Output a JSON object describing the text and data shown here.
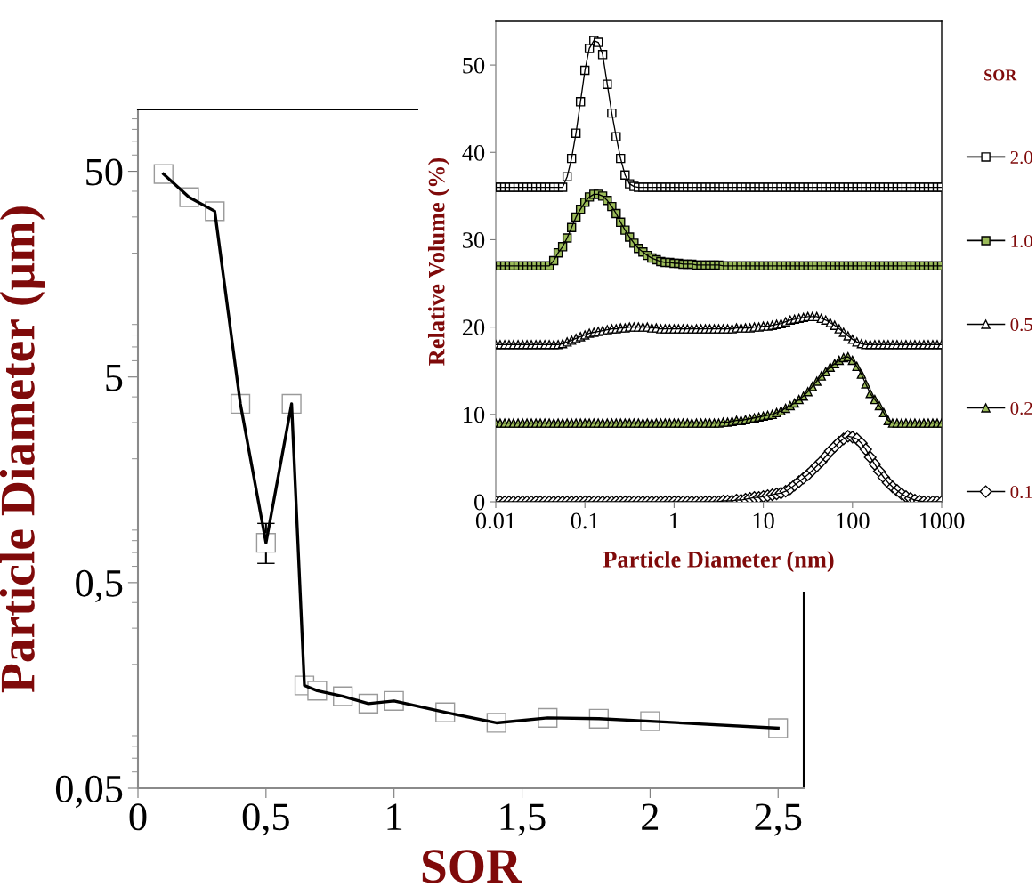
{
  "chart_data": [
    {
      "type": "line",
      "xlabel": "SOR",
      "ylabel": "Particle Diameter (µm)",
      "log": true,
      "marker": "square",
      "xlim": [
        0,
        2.6
      ],
      "xticks": [
        0,
        {
          "value": 0.5,
          "label": "0,5"
        },
        1,
        {
          "value": 1.5,
          "label": "1,5"
        },
        2,
        {
          "value": 2.5,
          "label": "2,5"
        }
      ],
      "ylim": [
        0.05,
        100
      ],
      "yticks": [
        {
          "value": 0.05,
          "label": "0,05"
        },
        {
          "value": 0.5,
          "label": "0,5"
        },
        5,
        50
      ],
      "x": [
        0.1,
        0.2,
        0.3,
        0.4,
        0.5,
        0.6,
        0.65,
        0.7,
        0.8,
        0.9,
        1.0,
        1.2,
        1.4,
        1.6,
        1.8,
        2.0,
        2.5
      ],
      "series": [
        {
          "color": "#ffffff",
          "values": [
            48.5,
            37.4,
            32,
            3.7,
            0.78,
            3.7,
            0.158,
            0.149,
            0.14,
            0.129,
            0.133,
            0.117,
            0.104,
            0.11,
            0.109,
            0.106,
            0.098
          ],
          "errors": [
            null,
            null,
            null,
            null,
            [
              0.62,
              0.97
            ],
            null,
            null,
            null,
            null,
            null,
            null,
            null,
            null,
            null,
            null,
            null,
            null
          ]
        }
      ]
    },
    {
      "type": "line",
      "xlabel": "Particle Diameter (nm)",
      "ylabel": "Relative Volume (%)",
      "log": "x",
      "legend": "right",
      "legend_title": "SOR",
      "xlim": [
        0.01,
        1000
      ],
      "xticks": [
        0.01,
        0.1,
        1,
        10,
        100,
        1000
      ],
      "ylim": [
        0,
        55
      ],
      "yticks": [
        0,
        10,
        20,
        30,
        40,
        50
      ],
      "x": [
        0.01,
        0.0112,
        0.0126,
        0.0141,
        0.0158,
        0.0178,
        0.02,
        0.0224,
        0.0251,
        0.0282,
        0.0316,
        0.0355,
        0.0398,
        0.0447,
        0.0501,
        0.0562,
        0.0631,
        0.0708,
        0.0794,
        0.0891,
        0.1,
        0.112,
        0.126,
        0.141,
        0.158,
        0.178,
        0.2,
        0.224,
        0.251,
        0.282,
        0.316,
        0.355,
        0.398,
        0.447,
        0.501,
        0.562,
        0.631,
        0.708,
        0.794,
        0.891,
        1,
        1.12,
        1.26,
        1.41,
        1.58,
        1.78,
        2,
        2.24,
        2.51,
        2.82,
        3.16,
        3.55,
        3.98,
        4.47,
        5.01,
        5.62,
        6.31,
        7.08,
        7.94,
        8.91,
        10,
        11.2,
        12.6,
        14.1,
        15.8,
        17.8,
        20,
        22.4,
        25.1,
        28.2,
        31.6,
        35.5,
        39.8,
        44.7,
        50.1,
        56.2,
        63.1,
        70.8,
        79.4,
        89.1,
        100,
        112,
        126,
        141,
        158,
        178,
        200,
        224,
        251,
        282,
        316,
        355,
        398,
        447,
        501,
        562,
        631,
        708,
        794,
        891,
        1000
      ],
      "series": [
        {
          "name": "2.0",
          "color": "#ffffff",
          "marker": "square",
          "values": [
            36,
            36,
            36,
            36,
            36,
            36,
            36,
            36,
            36,
            36,
            36,
            36,
            36,
            36,
            36,
            36,
            37.2,
            39.3,
            42.2,
            45.8,
            49.4,
            51.9,
            52.8,
            52.6,
            51.2,
            47.8,
            44.5,
            41.8,
            39.3,
            37.4,
            36.4,
            36.1,
            36,
            36,
            36,
            36,
            36,
            36,
            36,
            36,
            36,
            36,
            36,
            36,
            36,
            36,
            36,
            36,
            36,
            36,
            36,
            36,
            36,
            36,
            36,
            36,
            36,
            36,
            36,
            36,
            36,
            36,
            36,
            36,
            36,
            36,
            36,
            36,
            36,
            36,
            36,
            36,
            36,
            36,
            36,
            36,
            36,
            36,
            36,
            36,
            36,
            36,
            36,
            36,
            36,
            36,
            36,
            36,
            36,
            36,
            36,
            36,
            36,
            36,
            36,
            36,
            36,
            36,
            36,
            36,
            36
          ]
        },
        {
          "name": "1.0",
          "color": "#9bbb59",
          "marker": "square",
          "values": [
            27,
            27,
            27,
            27,
            27,
            27,
            27,
            27,
            27,
            27,
            27,
            27,
            27,
            27.6,
            28.5,
            29.2,
            30.2,
            31.4,
            32.6,
            33.5,
            34.3,
            34.9,
            35.2,
            35.2,
            35.0,
            34.5,
            33.8,
            33.0,
            32.0,
            31.1,
            30.3,
            29.6,
            29.0,
            28.6,
            28.2,
            27.9,
            27.7,
            27.5,
            27.4,
            27.4,
            27.3,
            27.3,
            27.2,
            27.2,
            27.2,
            27.1,
            27.1,
            27.1,
            27.1,
            27.1,
            27.1,
            27,
            27,
            27,
            27,
            27,
            27,
            27,
            27,
            27,
            27,
            27,
            27,
            27,
            27,
            27,
            27,
            27,
            27,
            27,
            27,
            27,
            27,
            27,
            27,
            27,
            27,
            27,
            27,
            27,
            27,
            27,
            27,
            27,
            27,
            27,
            27,
            27,
            27,
            27,
            27,
            27,
            27,
            27,
            27,
            27,
            27,
            27,
            27,
            27,
            27
          ]
        },
        {
          "name": "0.5",
          "color": "#ffffff",
          "marker": "triangle",
          "values": [
            18,
            18,
            18,
            18,
            18,
            18,
            18,
            18,
            18,
            18,
            18,
            18,
            18,
            18,
            18,
            18.1,
            18.3,
            18.5,
            18.7,
            18.9,
            19.1,
            19.3,
            19.4,
            19.5,
            19.6,
            19.7,
            19.8,
            19.8,
            19.9,
            19.9,
            20.0,
            20.0,
            20.0,
            20.0,
            20.0,
            19.9,
            19.9,
            19.8,
            19.8,
            19.8,
            19.8,
            19.8,
            19.8,
            19.8,
            19.8,
            19.8,
            19.8,
            19.8,
            19.8,
            19.8,
            19.8,
            19.8,
            19.8,
            19.8,
            19.9,
            19.9,
            19.9,
            19.9,
            20.0,
            20.0,
            20.1,
            20.1,
            20.2,
            20.3,
            20.4,
            20.6,
            20.8,
            20.9,
            21.0,
            21.1,
            21.2,
            21.2,
            21.2,
            21.0,
            20.8,
            20.5,
            20.2,
            19.8,
            19.4,
            19.0,
            18.6,
            18.3,
            18.1,
            18,
            18,
            18,
            18,
            18,
            18,
            18,
            18,
            18,
            18,
            18,
            18,
            18,
            18,
            18,
            18,
            18,
            18
          ]
        },
        {
          "name": "0.2",
          "color": "#9bbb59",
          "marker": "triangle",
          "values": [
            9,
            9,
            9,
            9,
            9,
            9,
            9,
            9,
            9,
            9,
            9,
            9,
            9,
            9,
            9,
            9,
            9,
            9,
            9,
            9,
            9,
            9,
            9,
            9,
            9,
            9,
            9,
            9,
            9,
            9,
            9,
            9,
            9,
            9,
            9,
            9,
            9,
            9,
            9,
            9,
            9,
            9,
            9,
            9,
            9,
            9,
            9,
            9,
            9,
            9,
            9.0,
            9.1,
            9.1,
            9.2,
            9.3,
            9.3,
            9.4,
            9.5,
            9.6,
            9.7,
            9.8,
            9.9,
            10.0,
            10.2,
            10.4,
            10.7,
            11.0,
            11.3,
            11.7,
            12.1,
            12.6,
            13.2,
            13.8,
            14.4,
            14.9,
            15.4,
            15.8,
            16.2,
            16.5,
            16.6,
            16.2,
            15.5,
            14.6,
            13.5,
            12.4,
            11.7,
            11.0,
            10.2,
            9.3,
            9.0,
            9,
            9,
            9,
            9,
            9,
            9,
            9,
            9,
            9,
            9,
            9
          ]
        },
        {
          "name": "0.1",
          "color": "#ffffff",
          "marker": "diamond",
          "values": [
            0,
            0,
            0,
            0,
            0,
            0,
            0,
            0,
            0,
            0,
            0,
            0,
            0,
            0,
            0,
            0,
            0,
            0,
            0,
            0,
            0,
            0,
            0,
            0,
            0,
            0,
            0,
            0,
            0,
            0,
            0,
            0,
            0,
            0,
            0,
            0,
            0,
            0,
            0,
            0,
            0,
            0,
            0,
            0,
            0,
            0,
            0,
            0,
            0,
            0,
            0,
            0.1,
            0.1,
            0.1,
            0.2,
            0.2,
            0.3,
            0.4,
            0.5,
            0.5,
            0.6,
            0.7,
            0.8,
            0.9,
            1.0,
            1.2,
            1.5,
            1.9,
            2.3,
            2.7,
            3.1,
            3.6,
            4.1,
            4.6,
            5.2,
            5.8,
            6.3,
            6.8,
            7.2,
            7.5,
            7.4,
            7.2,
            6.7,
            6.0,
            5.1,
            4.3,
            3.5,
            2.8,
            2.2,
            1.7,
            1.3,
            0.9,
            0.6,
            0.4,
            0.2,
            0.1,
            0,
            0,
            0,
            0,
            0
          ]
        }
      ]
    }
  ]
}
